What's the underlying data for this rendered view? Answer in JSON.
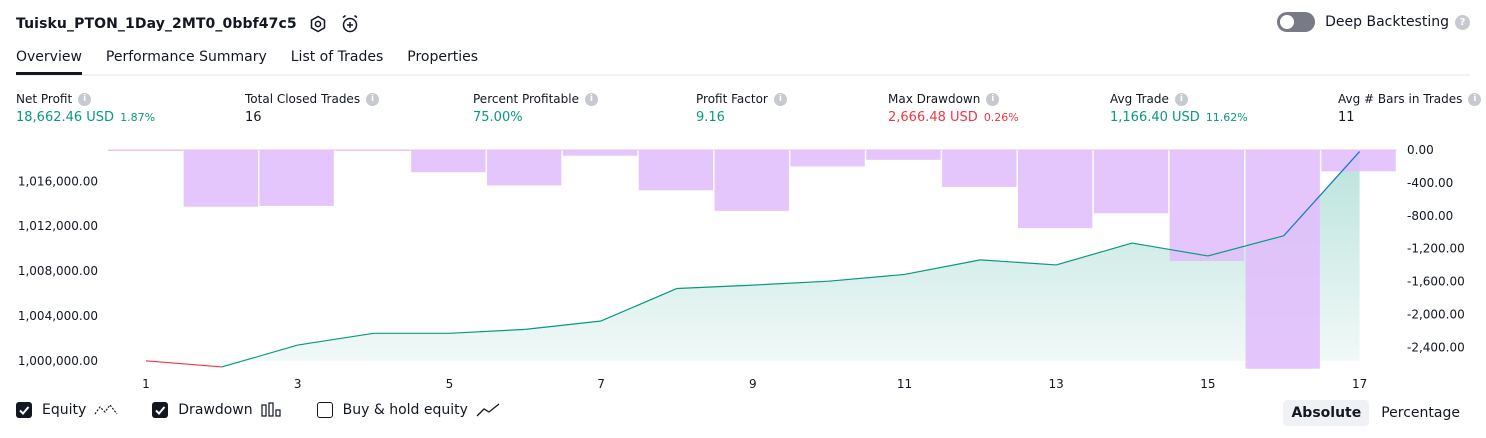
{
  "header": {
    "strategy_name": "Tuisku_PTON_1Day_2MT0_0bbf47c5",
    "settings_icon": "gear-icon",
    "alert_icon": "alarm-clock-plus-icon",
    "deep_backtesting_label": "Deep Backtesting",
    "deep_backtesting_enabled": false,
    "help_icon": "question-mark-icon"
  },
  "tabs": [
    {
      "label": "Overview",
      "active": true
    },
    {
      "label": "Performance Summary",
      "active": false
    },
    {
      "label": "List of Trades",
      "active": false
    },
    {
      "label": "Properties",
      "active": false
    }
  ],
  "stats": [
    {
      "label": "Net Profit",
      "value": "18,662.46 USD",
      "pct": "1.87%",
      "color": "#089981"
    },
    {
      "label": "Total Closed Trades",
      "value": "16",
      "pct": "",
      "color": "#131722"
    },
    {
      "label": "Percent Profitable",
      "value": "75.00%",
      "pct": "",
      "color": "#089981"
    },
    {
      "label": "Profit Factor",
      "value": "9.16",
      "pct": "",
      "color": "#089981"
    },
    {
      "label": "Max Drawdown",
      "value": "2,666.48 USD",
      "pct": "0.26%",
      "color": "#f23645"
    },
    {
      "label": "Avg Trade",
      "value": "1,166.40 USD",
      "pct": "11.62%",
      "color": "#089981"
    },
    {
      "label": "Avg # Bars in Trades",
      "value": "11",
      "pct": "",
      "color": "#131722"
    }
  ],
  "chart_data": {
    "type": "line",
    "x": [
      1,
      2,
      3,
      4,
      5,
      6,
      7,
      8,
      9,
      10,
      11,
      12,
      13,
      14,
      15,
      16,
      17
    ],
    "x_tick_labels": [
      "1",
      "3",
      "5",
      "7",
      "9",
      "11",
      "13",
      "15",
      "17"
    ],
    "left_axis": {
      "ylim": [
        999000,
        1018800
      ],
      "tick_labels": [
        "1,000,000.00",
        "1,004,000.00",
        "1,008,000.00",
        "1,012,000.00",
        "1,016,000.00"
      ],
      "tick_values": [
        1000000,
        1004000,
        1008000,
        1012000,
        1016000
      ]
    },
    "right_axis": {
      "ylim": [
        -2700,
        0
      ],
      "tick_labels": [
        "0.00",
        "-400.00",
        "-800.00",
        "-1,200.00",
        "-1,600.00",
        "-2,000.00",
        "-2,400.00"
      ],
      "tick_values": [
        0,
        -400,
        -800,
        -1200,
        -1600,
        -2000,
        -2400
      ]
    },
    "series": [
      {
        "name": "Equity",
        "color": "#089981",
        "loss_color": "#f23645",
        "values": [
          1000000,
          999450,
          1001400,
          1002450,
          1002450,
          1002800,
          1003550,
          1006450,
          1006750,
          1007100,
          1007700,
          1009000,
          1008550,
          1010500,
          1009350,
          1011150,
          1018660
        ]
      },
      {
        "name": "Drawdown",
        "color": "#e1bcfc",
        "values": [
          -10,
          -690,
          -680,
          -10,
          -270,
          -430,
          -70,
          -490,
          -740,
          -200,
          -120,
          -450,
          -950,
          -770,
          -1350,
          -2660,
          -260
        ]
      }
    ]
  },
  "legend": [
    {
      "label": "Equity",
      "checked": true,
      "icon": "equity-line-icon"
    },
    {
      "label": "Drawdown",
      "checked": true,
      "icon": "drawdown-bars-icon"
    },
    {
      "label": "Buy & hold equity",
      "checked": false,
      "icon": "buy-hold-line-icon"
    }
  ],
  "modes": [
    {
      "label": "Absolute",
      "active": true
    },
    {
      "label": "Percentage",
      "active": false
    }
  ]
}
